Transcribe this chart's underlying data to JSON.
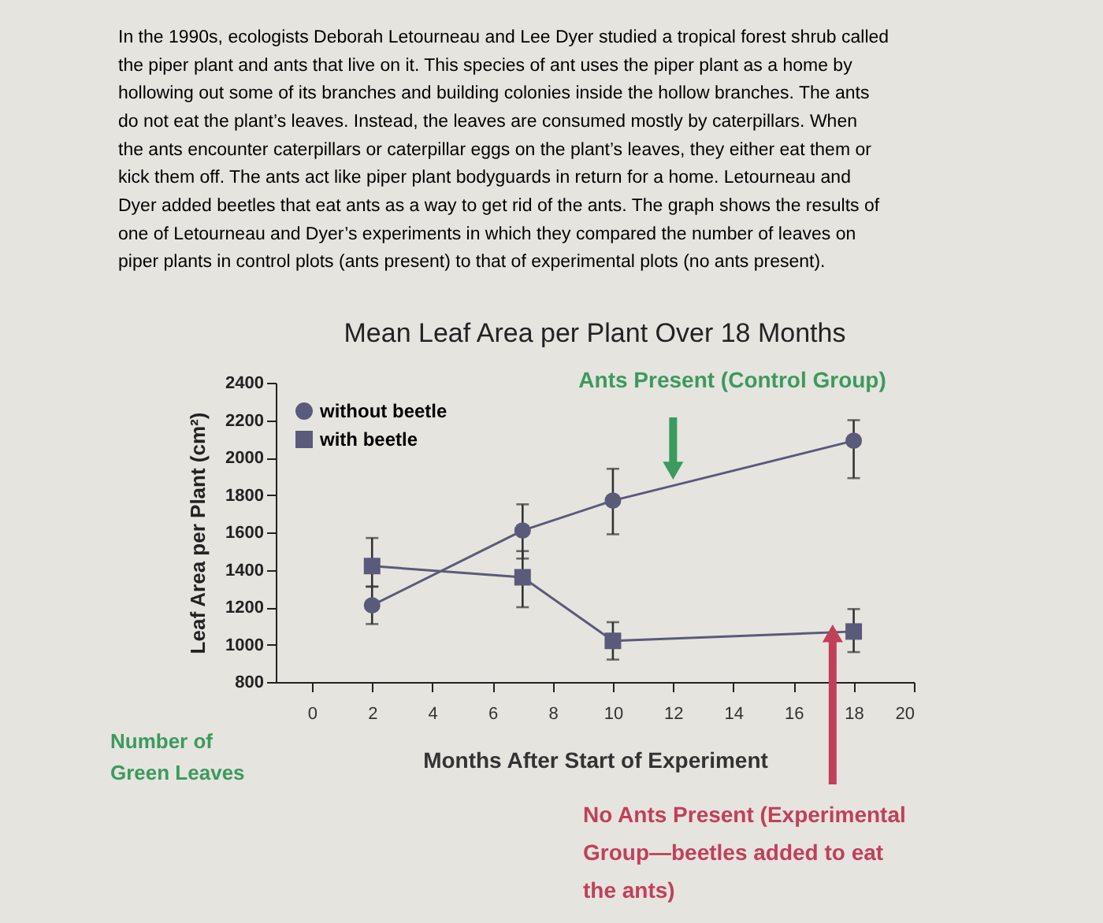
{
  "chart_data": {
    "type": "line",
    "title": "Mean Leaf Area per Plant Over 18 Months",
    "xlabel": "Months After Start of Experiment",
    "ylabel": "Leaf Area per Plant (cm²)",
    "x": [
      2,
      7,
      10,
      18
    ],
    "xlim": [
      -1.2,
      20
    ],
    "xticks": [
      0,
      2,
      4,
      6,
      8,
      10,
      12,
      14,
      16,
      18,
      20
    ],
    "ylim": [
      800,
      2400
    ],
    "yticks": [
      800,
      1000,
      1200,
      1400,
      1600,
      1800,
      2000,
      2200,
      2400
    ],
    "grid": false,
    "legend": "top left",
    "series": [
      {
        "name": "without beetle",
        "color": "#5a5a7a",
        "marker": "circle",
        "values": [
          1210,
          1610,
          1770,
          2090
        ],
        "errors": [
          [
            1110,
            1310
          ],
          [
            1460,
            1750
          ],
          [
            1590,
            1940
          ],
          [
            1890,
            2200
          ]
        ]
      },
      {
        "name": "with beetle",
        "color": "#5a5a7a",
        "marker": "square",
        "values": [
          1420,
          1360,
          1020,
          1070
        ],
        "errors": [
          [
            1310,
            1570
          ],
          [
            1200,
            1500
          ],
          [
            920,
            1120
          ],
          [
            960,
            1190
          ]
        ]
      }
    ],
    "annotations": [
      "In the 1990s, ecologists Deborah Letourneau and Lee Dyer studied a tropical forest shrub called\nthe piper plant and ants that live on it. This species of ant uses the piper plant as a home by\nhollowing out some of its branches and building colonies inside the hollow branches. The ants\ndo not eat the plant’s leaves. Instead, the leaves are consumed mostly by caterpillars. When\nthe ants encounter caterpillars or caterpillar eggs on the plant’s leaves, they either eat them or\nkick them off. The ants act like piper plant bodyguards in return for a home. Letourneau and\nDyer added beetles that eat ants as a way to get rid of the ants. The graph shows the results of\none of Letourneau and Dyer’s experiments in which they compared the number of leaves on\npiper plants in control plots (ants present) to that of experimental plots (no ants present).",
      {
        "text": "Ants Present (Control Group)",
        "x": 12,
        "y": 1930
      },
      {
        "text": "No Ants Present (Experimental\nGroup—beetles added to eat\nthe ants)",
        "x": 17.3,
        "y": 1060
      },
      "Number of\nGreen Leaves"
    ]
  }
}
